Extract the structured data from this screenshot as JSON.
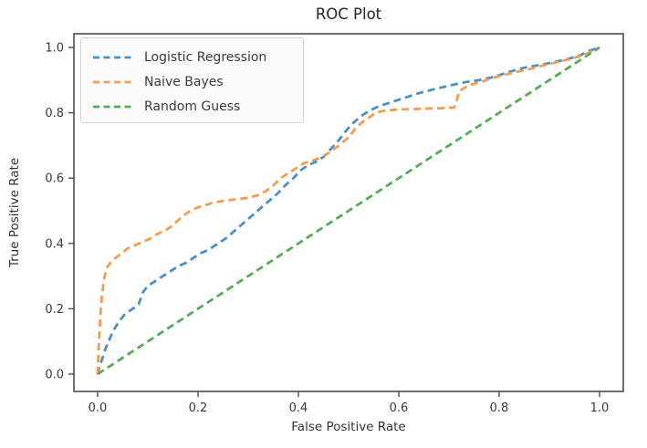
{
  "figure": {
    "title": "ROC Plot"
  },
  "axes": {
    "xlabel": "False Positive Rate",
    "ylabel": "True Positive Rate",
    "xtick_labels": [
      "0.0",
      "0.2",
      "0.4",
      "0.6",
      "0.8",
      "1.0"
    ],
    "ytick_labels": [
      "0.0",
      "0.2",
      "0.4",
      "0.6",
      "0.8",
      "1.0"
    ]
  },
  "colors": {
    "logistic_regression": "#4a90ca",
    "naive_bayes": "#f79c4d",
    "random_guess": "#55ad57",
    "spine": "#4c4c4c",
    "text": "#3a3a3a"
  },
  "chart_data": {
    "type": "line",
    "title": "ROC Plot",
    "xlabel": "False Positive Rate",
    "ylabel": "True Positive Rate",
    "xlim": [
      -0.05,
      1.05
    ],
    "ylim": [
      -0.05,
      1.05
    ],
    "xticks": [
      0.0,
      0.2,
      0.4,
      0.6,
      0.8,
      1.0
    ],
    "yticks": [
      0.0,
      0.2,
      0.4,
      0.6,
      0.8,
      1.0
    ],
    "xtick_labels": [
      "0.0",
      "0.2",
      "0.4",
      "0.6",
      "0.8",
      "1.0"
    ],
    "ytick_labels": [
      "0.0",
      "0.2",
      "0.4",
      "0.6",
      "0.8",
      "1.0"
    ],
    "grid": false,
    "legend_position": "upper left",
    "line_style": "dashed",
    "series": [
      {
        "name": "Logistic Regression",
        "color": "#4a90ca",
        "points": [
          [
            0,
            0
          ],
          [
            0.004,
            0.025
          ],
          [
            0.01,
            0.05
          ],
          [
            0.016,
            0.08
          ],
          [
            0.022,
            0.1
          ],
          [
            0.03,
            0.13
          ],
          [
            0.042,
            0.16
          ],
          [
            0.055,
            0.185
          ],
          [
            0.07,
            0.2
          ],
          [
            0.082,
            0.215
          ],
          [
            0.09,
            0.25
          ],
          [
            0.1,
            0.27
          ],
          [
            0.115,
            0.285
          ],
          [
            0.13,
            0.3
          ],
          [
            0.145,
            0.315
          ],
          [
            0.16,
            0.33
          ],
          [
            0.175,
            0.34
          ],
          [
            0.19,
            0.355
          ],
          [
            0.205,
            0.37
          ],
          [
            0.22,
            0.38
          ],
          [
            0.24,
            0.4
          ],
          [
            0.255,
            0.415
          ],
          [
            0.27,
            0.435
          ],
          [
            0.285,
            0.455
          ],
          [
            0.3,
            0.475
          ],
          [
            0.315,
            0.495
          ],
          [
            0.33,
            0.515
          ],
          [
            0.345,
            0.535
          ],
          [
            0.36,
            0.555
          ],
          [
            0.375,
            0.58
          ],
          [
            0.39,
            0.6
          ],
          [
            0.405,
            0.625
          ],
          [
            0.42,
            0.64
          ],
          [
            0.435,
            0.65
          ],
          [
            0.45,
            0.665
          ],
          [
            0.465,
            0.69
          ],
          [
            0.48,
            0.715
          ],
          [
            0.495,
            0.745
          ],
          [
            0.51,
            0.77
          ],
          [
            0.525,
            0.79
          ],
          [
            0.54,
            0.805
          ],
          [
            0.56,
            0.82
          ],
          [
            0.58,
            0.83
          ],
          [
            0.61,
            0.845
          ],
          [
            0.64,
            0.86
          ],
          [
            0.67,
            0.872
          ],
          [
            0.7,
            0.883
          ],
          [
            0.73,
            0.893
          ],
          [
            0.76,
            0.9
          ],
          [
            0.79,
            0.91
          ],
          [
            0.82,
            0.925
          ],
          [
            0.85,
            0.938
          ],
          [
            0.88,
            0.946
          ],
          [
            0.91,
            0.955
          ],
          [
            0.94,
            0.966
          ],
          [
            0.96,
            0.975
          ],
          [
            0.98,
            0.99
          ],
          [
            1,
            1
          ]
        ]
      },
      {
        "name": "Naive Bayes",
        "color": "#f79c4d",
        "points": [
          [
            0,
            0
          ],
          [
            0.002,
            0.08
          ],
          [
            0.004,
            0.14
          ],
          [
            0.006,
            0.19
          ],
          [
            0.008,
            0.23
          ],
          [
            0.011,
            0.27
          ],
          [
            0.014,
            0.3
          ],
          [
            0.018,
            0.325
          ],
          [
            0.025,
            0.34
          ],
          [
            0.035,
            0.355
          ],
          [
            0.048,
            0.37
          ],
          [
            0.06,
            0.385
          ],
          [
            0.075,
            0.395
          ],
          [
            0.09,
            0.405
          ],
          [
            0.105,
            0.415
          ],
          [
            0.12,
            0.43
          ],
          [
            0.135,
            0.44
          ],
          [
            0.15,
            0.455
          ],
          [
            0.163,
            0.475
          ],
          [
            0.175,
            0.49
          ],
          [
            0.19,
            0.505
          ],
          [
            0.21,
            0.515
          ],
          [
            0.23,
            0.525
          ],
          [
            0.25,
            0.53
          ],
          [
            0.275,
            0.535
          ],
          [
            0.3,
            0.54
          ],
          [
            0.32,
            0.548
          ],
          [
            0.335,
            0.56
          ],
          [
            0.35,
            0.578
          ],
          [
            0.365,
            0.6
          ],
          [
            0.38,
            0.615
          ],
          [
            0.395,
            0.63
          ],
          [
            0.41,
            0.645
          ],
          [
            0.425,
            0.652
          ],
          [
            0.44,
            0.66
          ],
          [
            0.455,
            0.672
          ],
          [
            0.47,
            0.688
          ],
          [
            0.485,
            0.705
          ],
          [
            0.5,
            0.725
          ],
          [
            0.515,
            0.755
          ],
          [
            0.53,
            0.775
          ],
          [
            0.545,
            0.79
          ],
          [
            0.553,
            0.8
          ],
          [
            0.57,
            0.806
          ],
          [
            0.6,
            0.81
          ],
          [
            0.64,
            0.812
          ],
          [
            0.68,
            0.814
          ],
          [
            0.71,
            0.816
          ],
          [
            0.716,
            0.84
          ],
          [
            0.72,
            0.866
          ],
          [
            0.74,
            0.885
          ],
          [
            0.765,
            0.895
          ],
          [
            0.79,
            0.908
          ],
          [
            0.82,
            0.92
          ],
          [
            0.85,
            0.93
          ],
          [
            0.88,
            0.942
          ],
          [
            0.91,
            0.953
          ],
          [
            0.94,
            0.964
          ],
          [
            0.97,
            0.978
          ],
          [
            1,
            1
          ]
        ]
      },
      {
        "name": "Random Guess",
        "color": "#55ad57",
        "points": [
          [
            0,
            0
          ],
          [
            1,
            1
          ]
        ]
      }
    ]
  }
}
